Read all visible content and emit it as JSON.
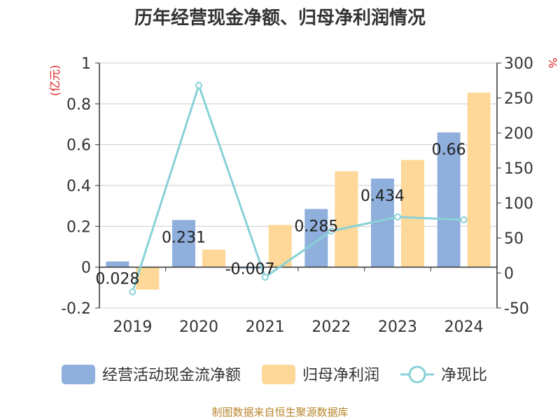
{
  "chart_data": {
    "type": "bar",
    "title": "历年经营现金净额、归母净利润情况",
    "categories": [
      "2019",
      "2020",
      "2021",
      "2022",
      "2023",
      "2024"
    ],
    "series": [
      {
        "name": "经营活动现金流净额",
        "type": "bar",
        "axis": "left",
        "color": "#8fafdc",
        "values": [
          0.028,
          0.231,
          -0.007,
          0.285,
          0.434,
          0.66
        ],
        "labels": [
          "0.028",
          "0.231",
          "-0.007",
          "0.285",
          "0.434",
          "0.66"
        ]
      },
      {
        "name": "归母净利润",
        "type": "bar",
        "axis": "left",
        "color": "#fdd898",
        "values": [
          -0.11,
          0.086,
          0.207,
          0.47,
          0.525,
          0.855
        ]
      },
      {
        "name": "净现比",
        "type": "line",
        "axis": "right",
        "color": "#88d1d7",
        "values": [
          -27,
          268,
          -6,
          60,
          80,
          76
        ]
      }
    ],
    "left_axis": {
      "unit": "(亿元)",
      "ylim": [
        -0.2,
        1
      ],
      "ticks": [
        "-0.2",
        "0",
        "0.2",
        "0.4",
        "0.6",
        "0.8",
        "1"
      ]
    },
    "right_axis": {
      "unit": "%",
      "ylim": [
        -50,
        300
      ],
      "ticks": [
        "-50",
        "0",
        "50",
        "100",
        "150",
        "200",
        "250",
        "300"
      ]
    },
    "legend_position": "bottom",
    "grid": true
  },
  "source": "制图数据来自恒生聚源数据库"
}
